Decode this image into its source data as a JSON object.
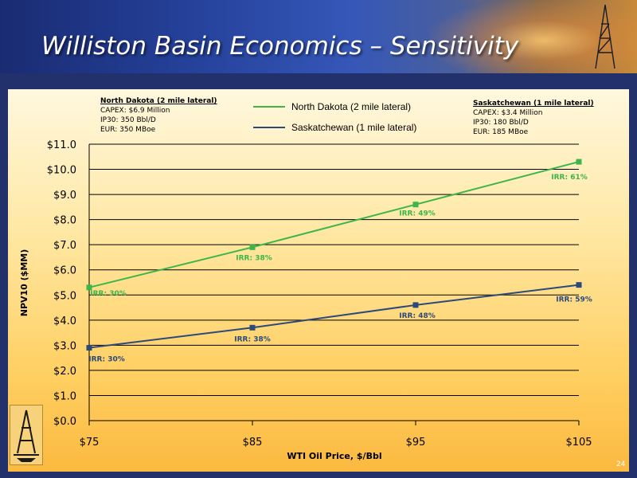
{
  "slide": {
    "title": "Williston Basin Economics – Sensitivity",
    "page_number": "24"
  },
  "info_boxes": {
    "north_dakota": {
      "header": "North Dakota (2 mile lateral)",
      "lines": [
        "CAPEX: $6.9 Million",
        "IP30: 350 Bbl/D",
        "EUR: 350 MBoe"
      ]
    },
    "saskatchewan": {
      "header": "Saskatchewan (1 mile lateral)",
      "lines": [
        "CAPEX: $3.4 Million",
        "IP30: 180 Bbl/D",
        "EUR: 185 MBoe"
      ]
    }
  },
  "colors": {
    "north_dakota": "#3db54a",
    "saskatchewan": "#2b4a7a",
    "gridline": "#000000"
  },
  "icons": {
    "banner_image": "oil-rig-icon",
    "logo": "oil-derrick-logo-icon"
  },
  "chart_data": {
    "type": "line",
    "xlabel": "WTI Oil Price, $/Bbl",
    "ylabel": "NPV10 ($MM)",
    "x": [
      75,
      85,
      95,
      105
    ],
    "x_tick_labels": [
      "$75",
      "$85",
      "$95",
      "$105"
    ],
    "ylim": [
      0,
      11
    ],
    "y_ticks": [
      0,
      1,
      2,
      3,
      4,
      5,
      6,
      7,
      8,
      9,
      10,
      11
    ],
    "y_tick_labels": [
      "$0.0",
      "$1.0",
      "$2.0",
      "$3.0",
      "$4.0",
      "$5.0",
      "$6.0",
      "$7.0",
      "$8.0",
      "$9.0",
      "$10.0",
      "$11.0"
    ],
    "grid": true,
    "legend_position": "top-center",
    "series": [
      {
        "name": "North Dakota (2 mile lateral)",
        "values": [
          5.3,
          6.9,
          8.6,
          10.3
        ],
        "labels": [
          "IRR: 30%",
          "IRR: 38%",
          "IRR: 49%",
          "IRR: 61%"
        ]
      },
      {
        "name": "Saskatchewan (1 mile lateral)",
        "values": [
          2.9,
          3.7,
          4.6,
          5.4
        ],
        "labels": [
          "IRR: 30%",
          "IRR: 38%",
          "IRR: 48%",
          "IRR: 59%"
        ]
      }
    ]
  }
}
